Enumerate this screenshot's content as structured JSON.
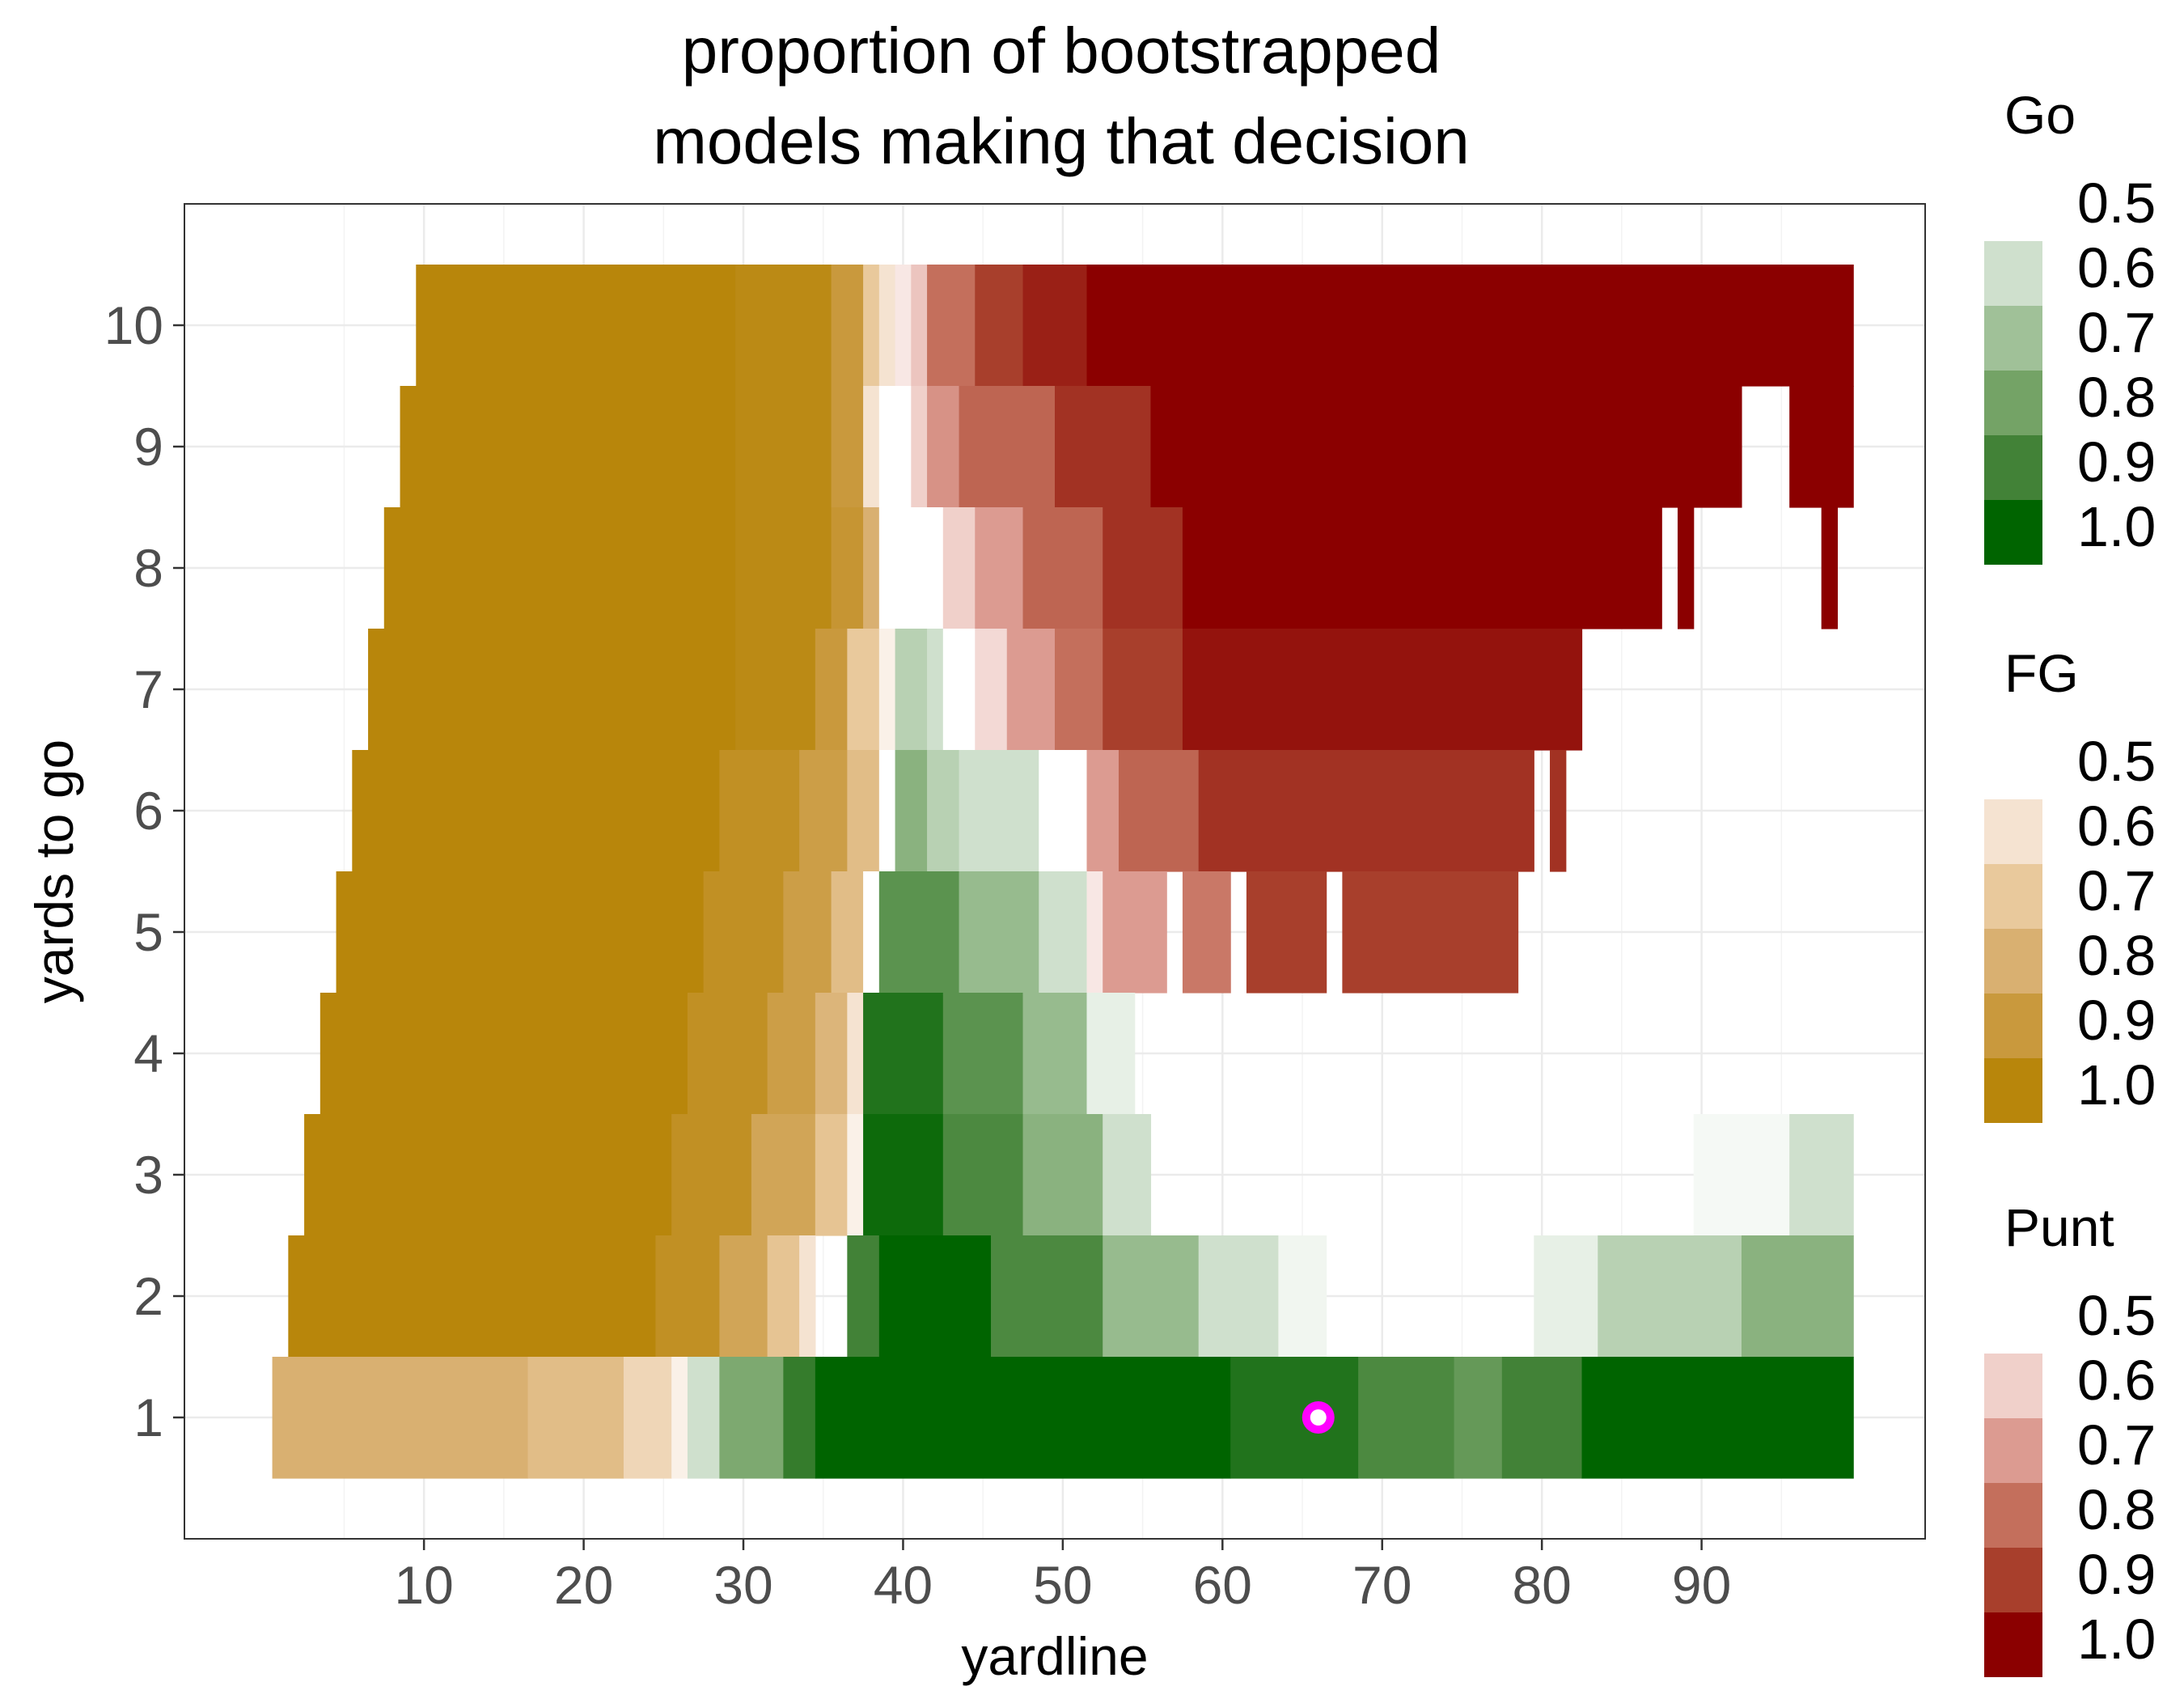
{
  "chart_data": {
    "type": "heatmap",
    "title": [
      "proportion of bootstrapped",
      "models making that decision"
    ],
    "xlabel": "yardline",
    "ylabel": "yards to go",
    "xlim": [
      -5,
      104
    ],
    "ylim": [
      0,
      11
    ],
    "xticks": [
      10,
      20,
      30,
      40,
      50,
      60,
      70,
      80,
      90
    ],
    "yticks": [
      1,
      2,
      3,
      4,
      5,
      6,
      7,
      8,
      9,
      10
    ],
    "grid": true,
    "decisions": [
      "Go",
      "FG",
      "Punt"
    ],
    "colors": {
      "Go": [
        "#ffffff",
        "#cfe0cd",
        "#a0c198",
        "#74a366",
        "#428237",
        "#006400"
      ],
      "FG": [
        "#ffffff",
        "#f5e3d1",
        "#e9c99c",
        "#d9b071",
        "#c9993d",
        "#b8860b"
      ],
      "Punt": [
        "#ffffff",
        "#f0d0ca",
        "#dc9b91",
        "#c46f5c",
        "#a83f2c",
        "#8b0000"
      ]
    },
    "legend": [
      {
        "title": "Go",
        "labels": [
          "0.5",
          "0.6",
          "0.7",
          "0.8",
          "0.9",
          "1.0"
        ]
      },
      {
        "title": "FG",
        "labels": [
          "0.5",
          "0.6",
          "0.7",
          "0.8",
          "0.9",
          "1.0"
        ]
      },
      {
        "title": "Punt",
        "labels": [
          "0.5",
          "0.6",
          "0.7",
          "0.8",
          "0.9",
          "1.0"
        ]
      }
    ],
    "highlight_point": {
      "x": 66,
      "y": 1
    },
    "rows": [
      {
        "ytg": 10,
        "x_start": 10,
        "x_end": 99,
        "segments": [
          {
            "to": 29,
            "d": "FG",
            "p": 1.0
          },
          {
            "to": 35,
            "d": "FG",
            "p": 0.98
          },
          {
            "to": 37,
            "d": "FG",
            "p": 0.9
          },
          {
            "to": 38,
            "d": "FG",
            "p": 0.7
          },
          {
            "to": 39,
            "d": "FG",
            "p": 0.6
          },
          {
            "to": 40,
            "d": "Punt",
            "p": 0.55
          },
          {
            "to": 41,
            "d": "Punt",
            "p": 0.62
          },
          {
            "to": 44,
            "d": "Punt",
            "p": 0.8
          },
          {
            "to": 47,
            "d": "Punt",
            "p": 0.9
          },
          {
            "to": 51,
            "d": "Punt",
            "p": 0.95
          },
          {
            "to": 99,
            "d": "Punt",
            "p": 1.0
          }
        ]
      },
      {
        "ytg": 9,
        "x_start": 9,
        "x_end": 99,
        "gaps": [
          [
            92,
            95
          ]
        ],
        "segments": [
          {
            "to": 29,
            "d": "FG",
            "p": 1.0
          },
          {
            "to": 35,
            "d": "FG",
            "p": 0.98
          },
          {
            "to": 37,
            "d": "FG",
            "p": 0.9
          },
          {
            "to": 38,
            "d": "FG",
            "p": 0.6
          },
          {
            "to": 40,
            "d": "Punt",
            "p": 0.5
          },
          {
            "to": 41,
            "d": "Punt",
            "p": 0.6
          },
          {
            "to": 43,
            "d": "Punt",
            "p": 0.72
          },
          {
            "to": 49,
            "d": "Punt",
            "p": 0.82
          },
          {
            "to": 55,
            "d": "Punt",
            "p": 0.92
          },
          {
            "to": 99,
            "d": "Punt",
            "p": 1.0
          }
        ]
      },
      {
        "ytg": 8,
        "x_start": 8,
        "x_end": 99,
        "gaps": [
          [
            87,
            88
          ],
          [
            89,
            97
          ],
          [
            98,
            99
          ]
        ],
        "segments": [
          {
            "to": 29,
            "d": "FG",
            "p": 1.0
          },
          {
            "to": 35,
            "d": "FG",
            "p": 0.98
          },
          {
            "to": 37,
            "d": "FG",
            "p": 0.92
          },
          {
            "to": 38,
            "d": "FG",
            "p": 0.8
          },
          {
            "to": 42,
            "d": "Punt",
            "p": 0.5
          },
          {
            "to": 44,
            "d": "Punt",
            "p": 0.6
          },
          {
            "to": 47,
            "d": "Punt",
            "p": 0.7
          },
          {
            "to": 52,
            "d": "Punt",
            "p": 0.82
          },
          {
            "to": 57,
            "d": "Punt",
            "p": 0.92
          },
          {
            "to": 99,
            "d": "Punt",
            "p": 1.0
          }
        ]
      },
      {
        "ytg": 7,
        "x_start": 7,
        "x_end": 82,
        "segments": [
          {
            "to": 29,
            "d": "FG",
            "p": 1.0
          },
          {
            "to": 34,
            "d": "FG",
            "p": 0.98
          },
          {
            "to": 36,
            "d": "FG",
            "p": 0.9
          },
          {
            "to": 38,
            "d": "FG",
            "p": 0.7
          },
          {
            "to": 39,
            "d": "FG",
            "p": 0.55
          },
          {
            "to": 41,
            "d": "Go",
            "p": 0.65
          },
          {
            "to": 42,
            "d": "Go",
            "p": 0.6
          },
          {
            "to": 44,
            "d": "Go",
            "p": 0.5
          },
          {
            "to": 46,
            "d": "Punt",
            "p": 0.58
          },
          {
            "to": 49,
            "d": "Punt",
            "p": 0.7
          },
          {
            "to": 52,
            "d": "Punt",
            "p": 0.8
          },
          {
            "to": 57,
            "d": "Punt",
            "p": 0.9
          },
          {
            "to": 82,
            "d": "Punt",
            "p": 0.97
          }
        ]
      },
      {
        "ytg": 6,
        "x_start": 6,
        "x_end": 81,
        "gaps": [
          [
            79,
            80
          ]
        ],
        "segments": [
          {
            "to": 28,
            "d": "FG",
            "p": 1.0
          },
          {
            "to": 33,
            "d": "FG",
            "p": 0.95
          },
          {
            "to": 36,
            "d": "FG",
            "p": 0.88
          },
          {
            "to": 38,
            "d": "FG",
            "p": 0.75
          },
          {
            "to": 39,
            "d": "Go",
            "p": 0.5
          },
          {
            "to": 41,
            "d": "Go",
            "p": 0.75
          },
          {
            "to": 43,
            "d": "Go",
            "p": 0.65
          },
          {
            "to": 48,
            "d": "Go",
            "p": 0.6
          },
          {
            "to": 51,
            "d": "Go",
            "p": 0.5
          },
          {
            "to": 53,
            "d": "Punt",
            "p": 0.7
          },
          {
            "to": 58,
            "d": "Punt",
            "p": 0.82
          },
          {
            "to": 79,
            "d": "Punt",
            "p": 0.92
          },
          {
            "to": 81,
            "d": "Punt",
            "p": 0.92
          }
        ]
      },
      {
        "ytg": 5,
        "x_start": 5,
        "x_end": 78,
        "gaps": [
          [
            56,
            57
          ],
          [
            60,
            61
          ],
          [
            66,
            67
          ]
        ],
        "segments": [
          {
            "to": 27,
            "d": "FG",
            "p": 1.0
          },
          {
            "to": 32,
            "d": "FG",
            "p": 0.95
          },
          {
            "to": 35,
            "d": "FG",
            "p": 0.88
          },
          {
            "to": 37,
            "d": "FG",
            "p": 0.75
          },
          {
            "to": 38,
            "d": "Go",
            "p": 0.5
          },
          {
            "to": 43,
            "d": "Go",
            "p": 0.85
          },
          {
            "to": 48,
            "d": "Go",
            "p": 0.72
          },
          {
            "to": 51,
            "d": "Go",
            "p": 0.6
          },
          {
            "to": 52,
            "d": "Punt",
            "p": 0.55
          },
          {
            "to": 56,
            "d": "Punt",
            "p": 0.7
          },
          {
            "to": 60,
            "d": "Punt",
            "p": 0.78
          },
          {
            "to": 78,
            "d": "Punt",
            "p": 0.9
          }
        ]
      },
      {
        "ytg": 4,
        "x_start": 4,
        "x_end": 54,
        "segments": [
          {
            "to": 26,
            "d": "FG",
            "p": 1.0
          },
          {
            "to": 31,
            "d": "FG",
            "p": 0.95
          },
          {
            "to": 34,
            "d": "FG",
            "p": 0.88
          },
          {
            "to": 36,
            "d": "FG",
            "p": 0.78
          },
          {
            "to": 37,
            "d": "FG",
            "p": 0.6
          },
          {
            "to": 42,
            "d": "Go",
            "p": 0.95
          },
          {
            "to": 47,
            "d": "Go",
            "p": 0.85
          },
          {
            "to": 51,
            "d": "Go",
            "p": 0.72
          },
          {
            "to": 54,
            "d": "Go",
            "p": 0.55
          }
        ]
      },
      {
        "ytg": 3,
        "x_start": 3,
        "x_end": 99,
        "gaps": [
          [
            55,
            89
          ]
        ],
        "segments": [
          {
            "to": 25,
            "d": "FG",
            "p": 1.0
          },
          {
            "to": 30,
            "d": "FG",
            "p": 0.95
          },
          {
            "to": 34,
            "d": "FG",
            "p": 0.85
          },
          {
            "to": 36,
            "d": "FG",
            "p": 0.72
          },
          {
            "to": 37,
            "d": "FG",
            "p": 0.55
          },
          {
            "to": 42,
            "d": "Go",
            "p": 0.98
          },
          {
            "to": 47,
            "d": "Go",
            "p": 0.88
          },
          {
            "to": 52,
            "d": "Go",
            "p": 0.75
          },
          {
            "to": 55,
            "d": "Go",
            "p": 0.6
          },
          {
            "to": 95,
            "d": "Go",
            "p": 0.52
          },
          {
            "to": 99,
            "d": "Go",
            "p": 0.6
          }
        ]
      },
      {
        "ytg": 2,
        "x_start": 2,
        "x_end": 99,
        "gaps": [
          [
            34,
            36
          ],
          [
            66,
            79
          ]
        ],
        "segments": [
          {
            "to": 24,
            "d": "FG",
            "p": 1.0
          },
          {
            "to": 28,
            "d": "FG",
            "p": 0.95
          },
          {
            "to": 31,
            "d": "FG",
            "p": 0.85
          },
          {
            "to": 33,
            "d": "FG",
            "p": 0.72
          },
          {
            "to": 34,
            "d": "FG",
            "p": 0.6
          },
          {
            "to": 36,
            "d": "Go",
            "p": 0.5
          },
          {
            "to": 38,
            "d": "Go",
            "p": 0.9
          },
          {
            "to": 45,
            "d": "Go",
            "p": 1.0
          },
          {
            "to": 52,
            "d": "Go",
            "p": 0.88
          },
          {
            "to": 58,
            "d": "Go",
            "p": 0.72
          },
          {
            "to": 63,
            "d": "Go",
            "p": 0.6
          },
          {
            "to": 66,
            "d": "Go",
            "p": 0.53
          },
          {
            "to": 83,
            "d": "Go",
            "p": 0.55
          },
          {
            "to": 92,
            "d": "Go",
            "p": 0.65
          },
          {
            "to": 99,
            "d": "Go",
            "p": 0.75
          }
        ]
      },
      {
        "ytg": 1,
        "x_start": 1,
        "x_end": 99,
        "segments": [
          {
            "to": 16,
            "d": "FG",
            "p": 0.8
          },
          {
            "to": 22,
            "d": "FG",
            "p": 0.75
          },
          {
            "to": 25,
            "d": "FG",
            "p": 0.65
          },
          {
            "to": 26,
            "d": "FG",
            "p": 0.55
          },
          {
            "to": 28,
            "d": "Go",
            "p": 0.6
          },
          {
            "to": 32,
            "d": "Go",
            "p": 0.78
          },
          {
            "to": 34,
            "d": "Go",
            "p": 0.92
          },
          {
            "to": 60,
            "d": "Go",
            "p": 1.0
          },
          {
            "to": 68,
            "d": "Go",
            "p": 0.95
          },
          {
            "to": 74,
            "d": "Go",
            "p": 0.88
          },
          {
            "to": 77,
            "d": "Go",
            "p": 0.83
          },
          {
            "to": 82,
            "d": "Go",
            "p": 0.9
          },
          {
            "to": 99,
            "d": "Go",
            "p": 1.0
          }
        ]
      }
    ]
  }
}
